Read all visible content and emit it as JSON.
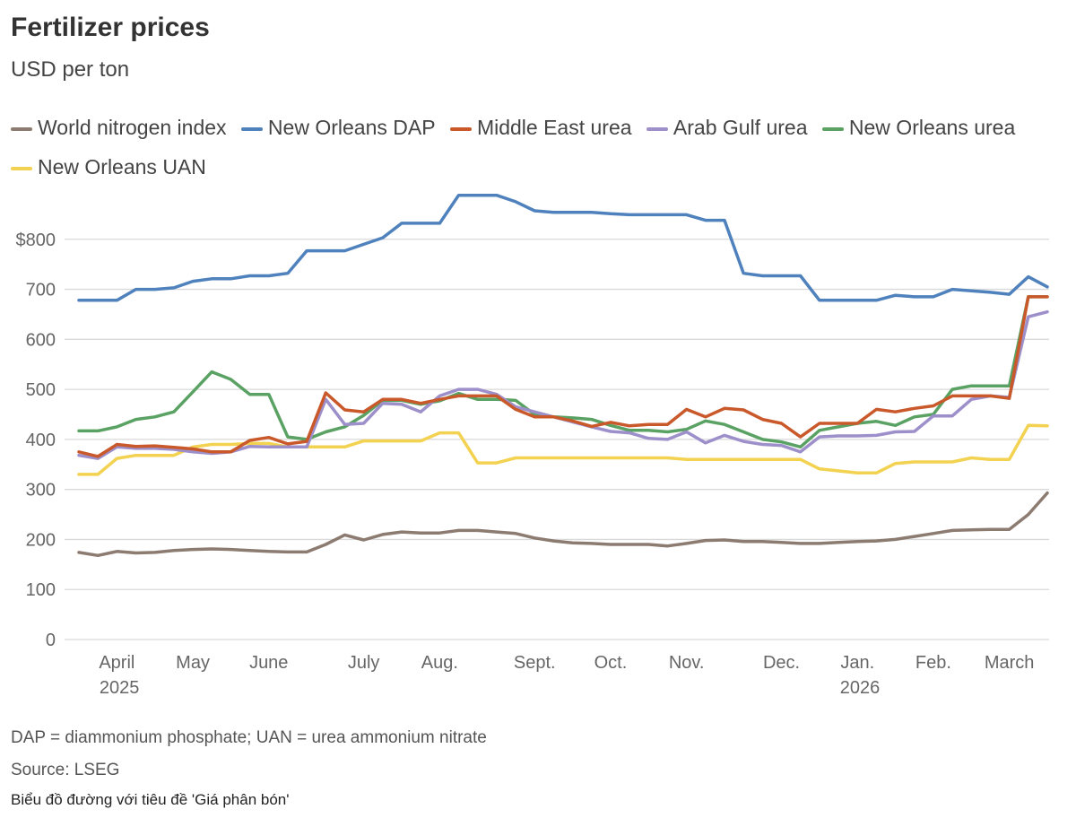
{
  "chart_data": {
    "type": "line",
    "title": "Fertilizer prices",
    "subtitle": "USD per ton",
    "note": "DAP = diammonium phosphate; UAN = urea ammonium nitrate",
    "source": "Source: LSEG",
    "caption": "Biểu đồ đường với tiêu đề 'Giá phân bón'",
    "categories": [
      null,
      null,
      "April 2025",
      null,
      null,
      null,
      "May",
      null,
      null,
      null,
      "June",
      null,
      null,
      null,
      null,
      "July",
      null,
      null,
      null,
      "Aug.",
      null,
      null,
      null,
      null,
      "Sept.",
      null,
      null,
      null,
      "Oct.",
      null,
      null,
      null,
      "Nov.",
      null,
      null,
      null,
      null,
      "Dec.",
      null,
      null,
      null,
      "Jan. 2026",
      null,
      null,
      null,
      "Feb.",
      null,
      null,
      null,
      "March",
      null,
      null
    ],
    "ylim": [
      0,
      900
    ],
    "yticks": [
      0,
      100,
      200,
      300,
      400,
      500,
      600,
      700,
      {
        "value": 800,
        "label": "$800"
      }
    ],
    "grid": true,
    "series": [
      {
        "name": "World nitrogen index",
        "color": "#8c7b70",
        "values": [
          174,
          168,
          176,
          173,
          174,
          178,
          180,
          181,
          180,
          178,
          176,
          175,
          175,
          190,
          209,
          199,
          210,
          215,
          213,
          213,
          218,
          218,
          215,
          212,
          203,
          197,
          193,
          192,
          190,
          190,
          190,
          187,
          192,
          198,
          199,
          196,
          196,
          194,
          192,
          192,
          194,
          196,
          197,
          200,
          206,
          212,
          218,
          219,
          220,
          220,
          250,
          293
        ]
      },
      {
        "name": "New Orleans DAP",
        "color": "#4f82bd",
        "values": [
          678,
          678,
          678,
          700,
          700,
          703,
          716,
          721,
          721,
          727,
          727,
          732,
          777,
          777,
          777,
          790,
          803,
          832,
          832,
          832,
          888,
          888,
          888,
          875,
          857,
          854,
          854,
          854,
          851,
          849,
          849,
          849,
          849,
          838,
          838,
          732,
          727,
          727,
          727,
          678,
          678,
          678,
          678,
          688,
          685,
          685,
          700,
          697,
          694,
          690,
          725,
          705
        ]
      },
      {
        "name": "Middle East urea",
        "color": "#c9592b",
        "values": [
          375,
          366,
          390,
          386,
          387,
          384,
          381,
          375,
          375,
          398,
          404,
          391,
          396,
          493,
          459,
          455,
          480,
          480,
          472,
          480,
          487,
          487,
          487,
          460,
          445,
          445,
          437,
          426,
          434,
          427,
          430,
          430,
          460,
          445,
          462,
          459,
          440,
          432,
          405,
          432,
          432,
          432,
          460,
          455,
          462,
          467,
          487,
          487,
          487,
          482,
          685,
          685
        ]
      },
      {
        "name": "Arab Gulf urea",
        "color": "#9d8fca",
        "values": [
          368,
          362,
          385,
          382,
          382,
          380,
          375,
          372,
          375,
          386,
          385,
          385,
          385,
          480,
          430,
          432,
          472,
          470,
          455,
          487,
          500,
          500,
          490,
          465,
          455,
          445,
          435,
          425,
          416,
          413,
          402,
          400,
          415,
          393,
          408,
          396,
          390,
          388,
          375,
          405,
          407,
          407,
          408,
          415,
          416,
          447,
          447,
          480,
          487,
          484,
          645,
          655
        ]
      },
      {
        "name": "New Orleans urea",
        "color": "#5aa263",
        "values": [
          417,
          417,
          425,
          440,
          445,
          455,
          495,
          535,
          520,
          490,
          490,
          405,
          400,
          415,
          425,
          448,
          478,
          478,
          470,
          477,
          492,
          480,
          480,
          478,
          450,
          445,
          443,
          440,
          428,
          418,
          418,
          415,
          420,
          437,
          430,
          415,
          400,
          395,
          385,
          418,
          425,
          432,
          436,
          428,
          445,
          450,
          500,
          507,
          507,
          507,
          685,
          685
        ]
      },
      {
        "name": "New Orleans UAN",
        "color": "#f2d250",
        "values": [
          330,
          330,
          362,
          368,
          368,
          368,
          385,
          390,
          390,
          392,
          392,
          385,
          385,
          385,
          385,
          397,
          397,
          397,
          397,
          413,
          413,
          353,
          353,
          363,
          363,
          363,
          363,
          363,
          363,
          363,
          363,
          363,
          360,
          360,
          360,
          360,
          360,
          360,
          360,
          341,
          337,
          333,
          333,
          352,
          355,
          355,
          355,
          363,
          360,
          360,
          428,
          427
        ]
      }
    ]
  }
}
